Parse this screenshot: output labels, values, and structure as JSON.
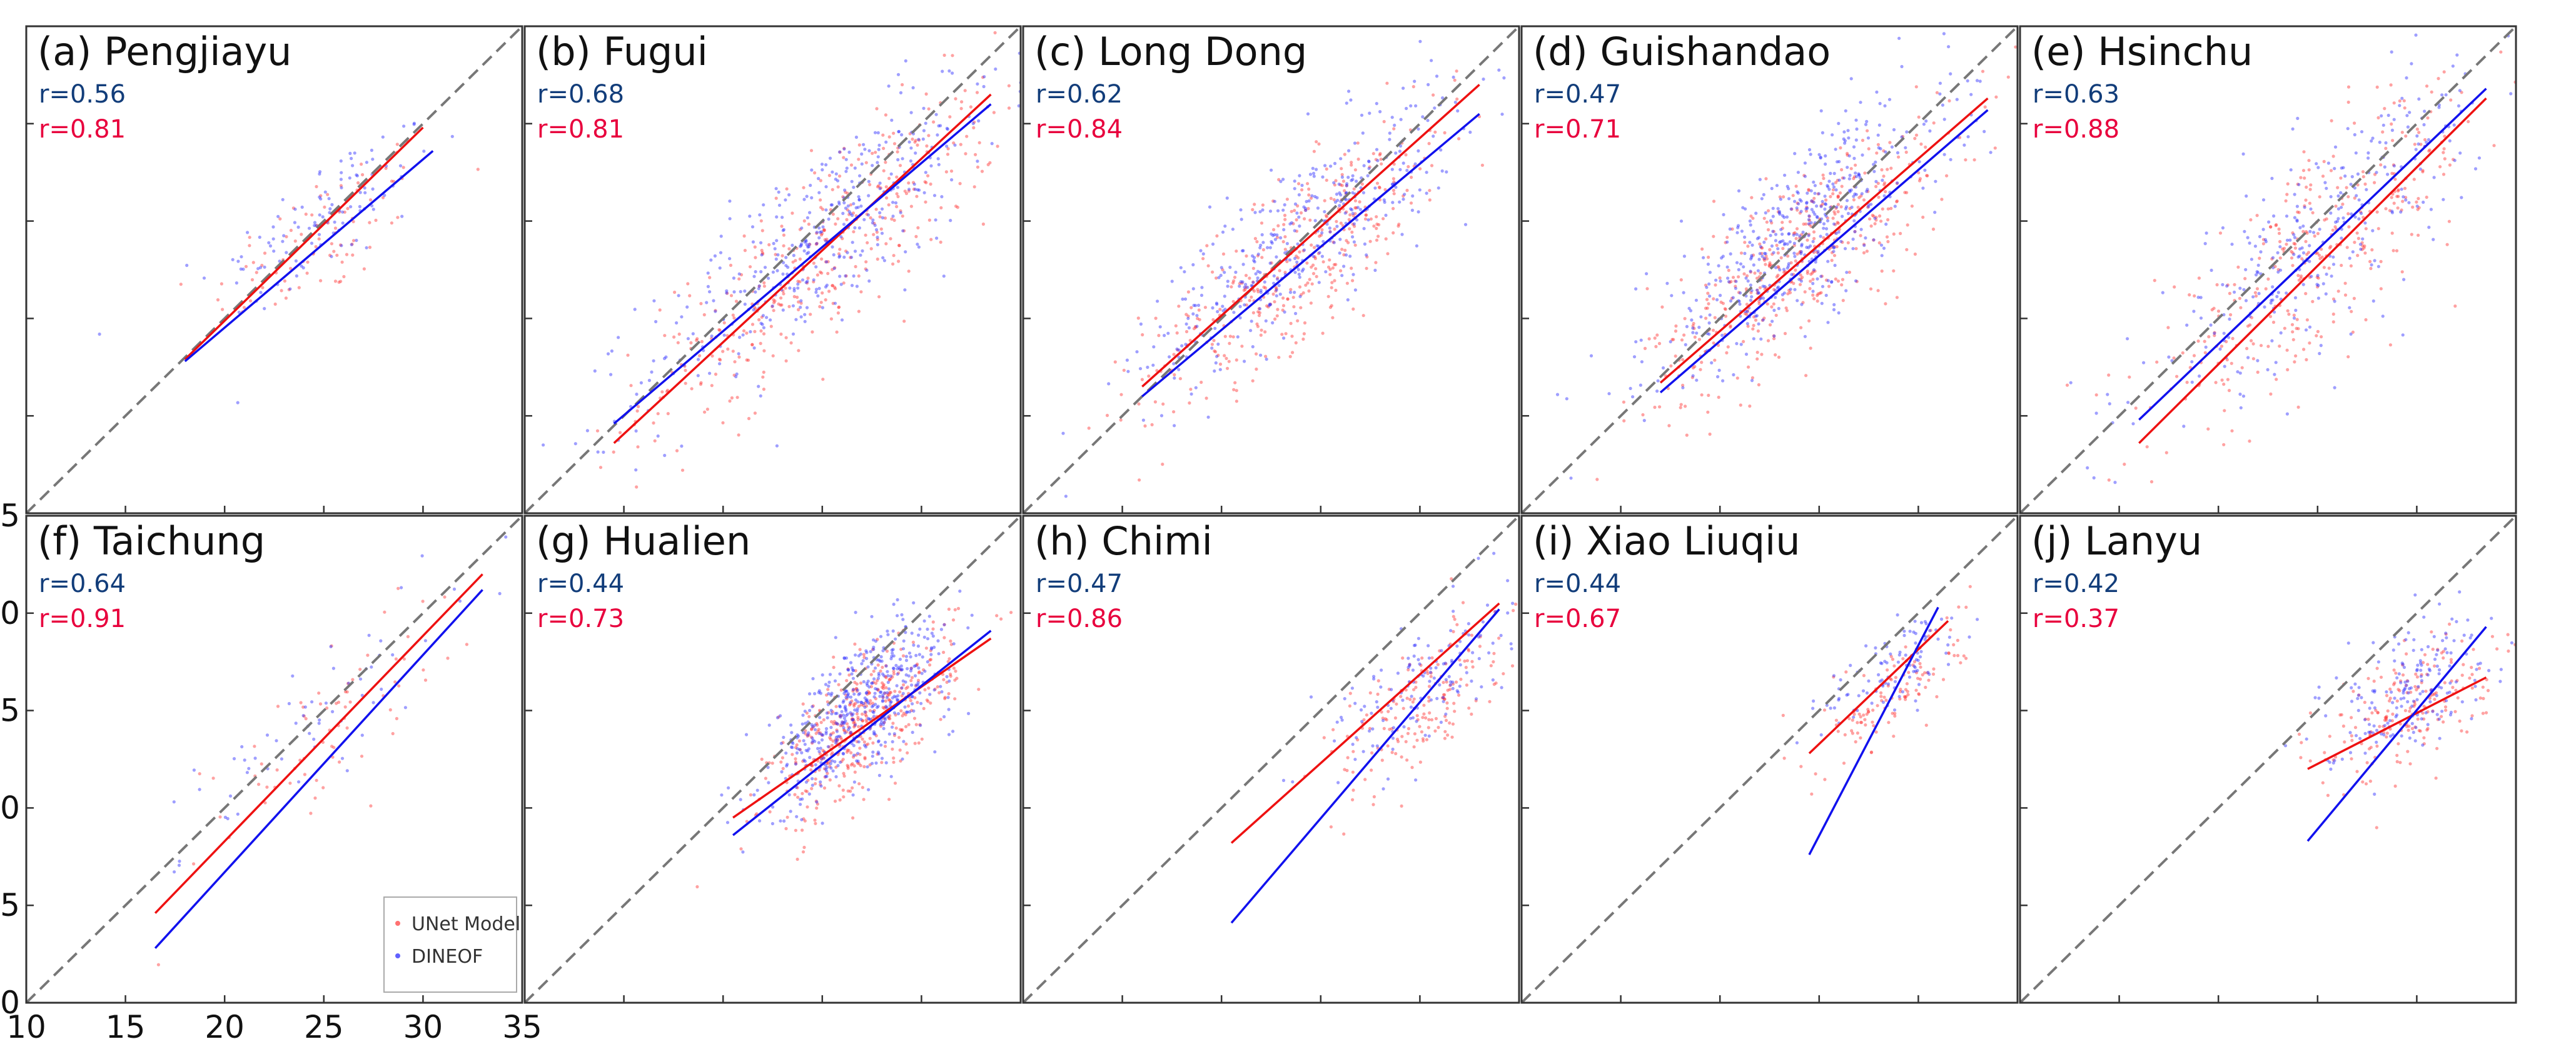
{
  "chart_data": {
    "type": "scatter",
    "title": "",
    "xlabel": "",
    "ylabel": "",
    "xlim": [
      10,
      35
    ],
    "ylim": [
      10,
      35
    ],
    "x_ticks": [
      "10",
      "15",
      "20",
      "25",
      "30",
      "35"
    ],
    "y_ticks": [
      "10",
      "15",
      "20",
      "25",
      "30",
      "35"
    ],
    "grid": false,
    "identity_line": true,
    "legend": {
      "placement": "lower-right of panel (f)",
      "entries": [
        {
          "label": "UNet Model",
          "color": "#ff4d4d"
        },
        {
          "label": "DINEOF",
          "color": "#3a3aff"
        }
      ]
    },
    "series_colors": {
      "unet": "#ff3030",
      "dineof": "#2b2bff"
    },
    "r_colors": {
      "dineof": "#123d7a",
      "unet": "#e8003d"
    },
    "panels": [
      {
        "label": "(a) Pengjiayu",
        "r_dineof": "r=0.56",
        "r_unet": "r=0.81",
        "fit_unet": {
          "x": [
            18,
            30
          ],
          "y": [
            17.9,
            29.8
          ]
        },
        "fit_dineof": {
          "x": [
            18,
            30.5
          ],
          "y": [
            17.8,
            28.6
          ]
        },
        "cluster": {
          "cx": 25,
          "cy": 25,
          "sx": 2.8,
          "sy": 3.0,
          "slope": 0.6,
          "n_unet": 90,
          "n_dineof": 110
        }
      },
      {
        "label": "(b) Fugui",
        "r_dineof": "r=0.68",
        "r_unet": "r=0.81",
        "fit_unet": {
          "x": [
            14.5,
            33.5
          ],
          "y": [
            13.6,
            31.5
          ]
        },
        "fit_dineof": {
          "x": [
            14.5,
            33.5
          ],
          "y": [
            14.6,
            31.0
          ]
        },
        "cluster": {
          "cx": 25,
          "cy": 24,
          "sx": 4.5,
          "sy": 4.2,
          "slope": 0.8,
          "n_unet": 400,
          "n_dineof": 400
        }
      },
      {
        "label": "(c) Long Dong",
        "r_dineof": "r=0.62",
        "r_unet": "r=0.84",
        "fit_unet": {
          "x": [
            16,
            33
          ],
          "y": [
            16.5,
            32.0
          ]
        },
        "fit_dineof": {
          "x": [
            16,
            33
          ],
          "y": [
            16.0,
            30.5
          ]
        },
        "cluster": {
          "cx": 24,
          "cy": 24,
          "sx": 4.0,
          "sy": 3.8,
          "slope": 0.8,
          "n_unet": 400,
          "n_dineof": 400
        }
      },
      {
        "label": "(d) Guishandao",
        "r_dineof": "r=0.47",
        "r_unet": "r=0.71",
        "fit_unet": {
          "x": [
            17,
            33.5
          ],
          "y": [
            16.7,
            31.3
          ]
        },
        "fit_dineof": {
          "x": [
            17,
            33.5
          ],
          "y": [
            16.2,
            30.7
          ]
        },
        "cluster": {
          "cx": 24,
          "cy": 24,
          "sx": 3.8,
          "sy": 4.0,
          "slope": 0.75,
          "n_unet": 450,
          "n_dineof": 500
        }
      },
      {
        "label": "(e) Hsinchu",
        "r_dineof": "r=0.63",
        "r_unet": "r=0.88",
        "fit_unet": {
          "x": [
            16,
            33.5
          ],
          "y": [
            13.6,
            31.3
          ]
        },
        "fit_dineof": {
          "x": [
            16,
            33.5
          ],
          "y": [
            14.8,
            31.8
          ]
        },
        "cluster": {
          "cx": 25,
          "cy": 24,
          "sx": 4.2,
          "sy": 4.5,
          "slope": 0.85,
          "n_unet": 350,
          "n_dineof": 300
        }
      },
      {
        "label": "(f) Taichung",
        "r_dineof": "r=0.64",
        "r_unet": "r=0.91",
        "fit_unet": {
          "x": [
            16.5,
            33
          ],
          "y": [
            14.6,
            32.0
          ]
        },
        "fit_dineof": {
          "x": [
            16.5,
            33
          ],
          "y": [
            12.8,
            31.2
          ]
        },
        "cluster": {
          "cx": 25,
          "cy": 25,
          "sx": 3.5,
          "sy": 3.5,
          "slope": 0.9,
          "n_unet": 70,
          "n_dineof": 60
        }
      },
      {
        "label": "(g) Hualien",
        "r_dineof": "r=0.44",
        "r_unet": "r=0.73",
        "fit_unet": {
          "x": [
            20.5,
            33.5
          ],
          "y": [
            19.5,
            28.7
          ]
        },
        "fit_dineof": {
          "x": [
            20.5,
            33.5
          ],
          "y": [
            18.6,
            29.1
          ]
        },
        "cluster": {
          "cx": 27,
          "cy": 25,
          "sx": 2.3,
          "sy": 3.0,
          "slope": 0.7,
          "n_unet": 450,
          "n_dineof": 500
        }
      },
      {
        "label": "(h) Chimi",
        "r_dineof": "r=0.47",
        "r_unet": "r=0.86",
        "fit_unet": {
          "x": [
            20.5,
            34
          ],
          "y": [
            18.2,
            30.5
          ]
        },
        "fit_dineof": {
          "x": [
            20.5,
            34
          ],
          "y": [
            14.1,
            30.2
          ]
        },
        "cluster": {
          "cx": 30,
          "cy": 26,
          "sx": 2.2,
          "sy": 3.0,
          "slope": 0.7,
          "n_unet": 180,
          "n_dineof": 140
        }
      },
      {
        "label": "(i) Xiao Liuqiu",
        "r_dineof": "r=0.44",
        "r_unet": "r=0.67",
        "fit_unet": {
          "x": [
            24.5,
            31.5
          ],
          "y": [
            22.8,
            29.6
          ]
        },
        "fit_dineof": {
          "x": [
            24.5,
            31
          ],
          "y": [
            17.6,
            30.3
          ]
        },
        "cluster": {
          "cx": 29,
          "cy": 27,
          "sx": 1.8,
          "sy": 2.2,
          "slope": 0.7,
          "n_unet": 120,
          "n_dineof": 100
        }
      },
      {
        "label": "(j) Lanyu",
        "r_dineof": "r=0.42",
        "r_unet": "r=0.37",
        "fit_unet": {
          "x": [
            24.5,
            33.5
          ],
          "y": [
            22.0,
            26.7
          ]
        },
        "fit_dineof": {
          "x": [
            24.5,
            33.5
          ],
          "y": [
            18.3,
            29.3
          ]
        },
        "cluster": {
          "cx": 29.5,
          "cy": 26,
          "sx": 2.2,
          "sy": 2.8,
          "slope": 0.5,
          "n_unet": 200,
          "n_dineof": 180
        }
      }
    ]
  }
}
